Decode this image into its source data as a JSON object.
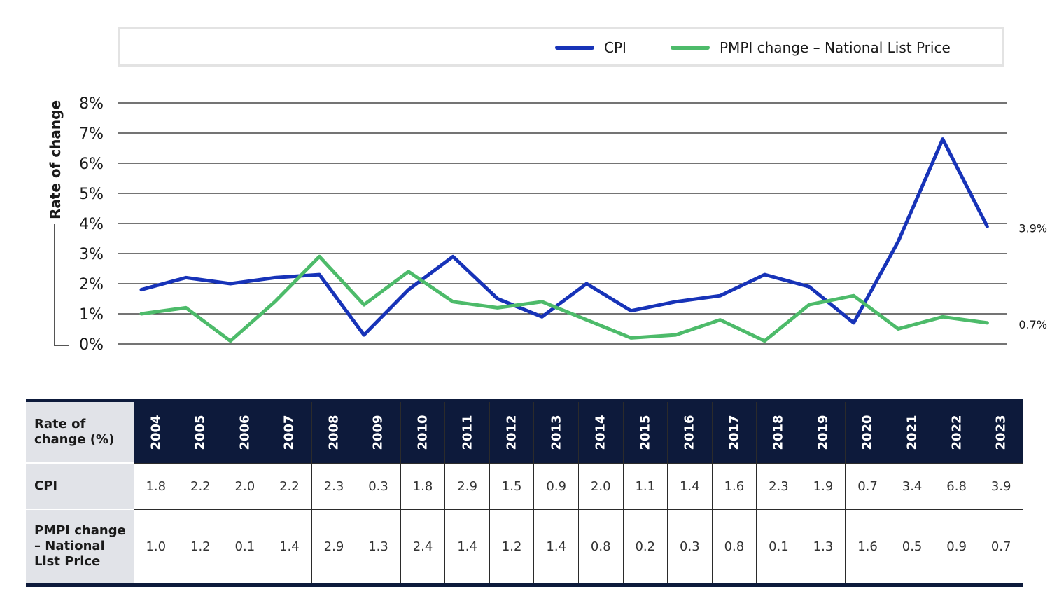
{
  "chart_data": {
    "type": "line",
    "categories": [
      "2004",
      "2005",
      "2006",
      "2007",
      "2008",
      "2009",
      "2010",
      "2011",
      "2012",
      "2013",
      "2014",
      "2015",
      "2016",
      "2017",
      "2018",
      "2019",
      "2020",
      "2021",
      "2022",
      "2023"
    ],
    "series": [
      {
        "name": "CPI",
        "color": "#1733b8",
        "values": [
          1.8,
          2.2,
          2.0,
          2.2,
          2.3,
          0.3,
          1.8,
          2.9,
          1.5,
          0.9,
          2.0,
          1.1,
          1.4,
          1.6,
          2.3,
          1.9,
          0.7,
          3.4,
          6.8,
          3.9
        ],
        "end_label": "3.9%"
      },
      {
        "name": "PMPI change – National List Price",
        "color": "#4dbb6a",
        "values": [
          1.0,
          1.2,
          0.1,
          1.4,
          2.9,
          1.3,
          2.4,
          1.4,
          1.2,
          1.4,
          0.8,
          0.2,
          0.3,
          0.8,
          0.1,
          1.3,
          1.6,
          0.5,
          0.9,
          0.7
        ],
        "end_label": "0.7%"
      }
    ],
    "ylabel": "Rate of change",
    "ylim": [
      0,
      8
    ],
    "yticks": [
      0,
      1,
      2,
      3,
      4,
      5,
      6,
      7,
      8
    ],
    "ytick_labels": [
      "0%",
      "1%",
      "2%",
      "3%",
      "4%",
      "5%",
      "6%",
      "7%",
      "8%"
    ],
    "grid": true,
    "legend_position": "top-right"
  },
  "table": {
    "corner_label": "Rate of change (%)",
    "years": [
      "2004",
      "2005",
      "2006",
      "2007",
      "2008",
      "2009",
      "2010",
      "2011",
      "2012",
      "2013",
      "2014",
      "2015",
      "2016",
      "2017",
      "2018",
      "2019",
      "2020",
      "2021",
      "2022",
      "2023"
    ],
    "rows": [
      {
        "label": "CPI",
        "values": [
          "1.8",
          "2.2",
          "2.0",
          "2.2",
          "2.3",
          "0.3",
          "1.8",
          "2.9",
          "1.5",
          "0.9",
          "2.0",
          "1.1",
          "1.4",
          "1.6",
          "2.3",
          "1.9",
          "0.7",
          "3.4",
          "6.8",
          "3.9"
        ]
      },
      {
        "label": "PMPI change – National List Price",
        "values": [
          "1.0",
          "1.2",
          "0.1",
          "1.4",
          "2.9",
          "1.3",
          "2.4",
          "1.4",
          "1.2",
          "1.4",
          "0.8",
          "0.2",
          "0.3",
          "0.8",
          "0.1",
          "1.3",
          "1.6",
          "0.5",
          "0.9",
          "0.7"
        ]
      }
    ]
  }
}
